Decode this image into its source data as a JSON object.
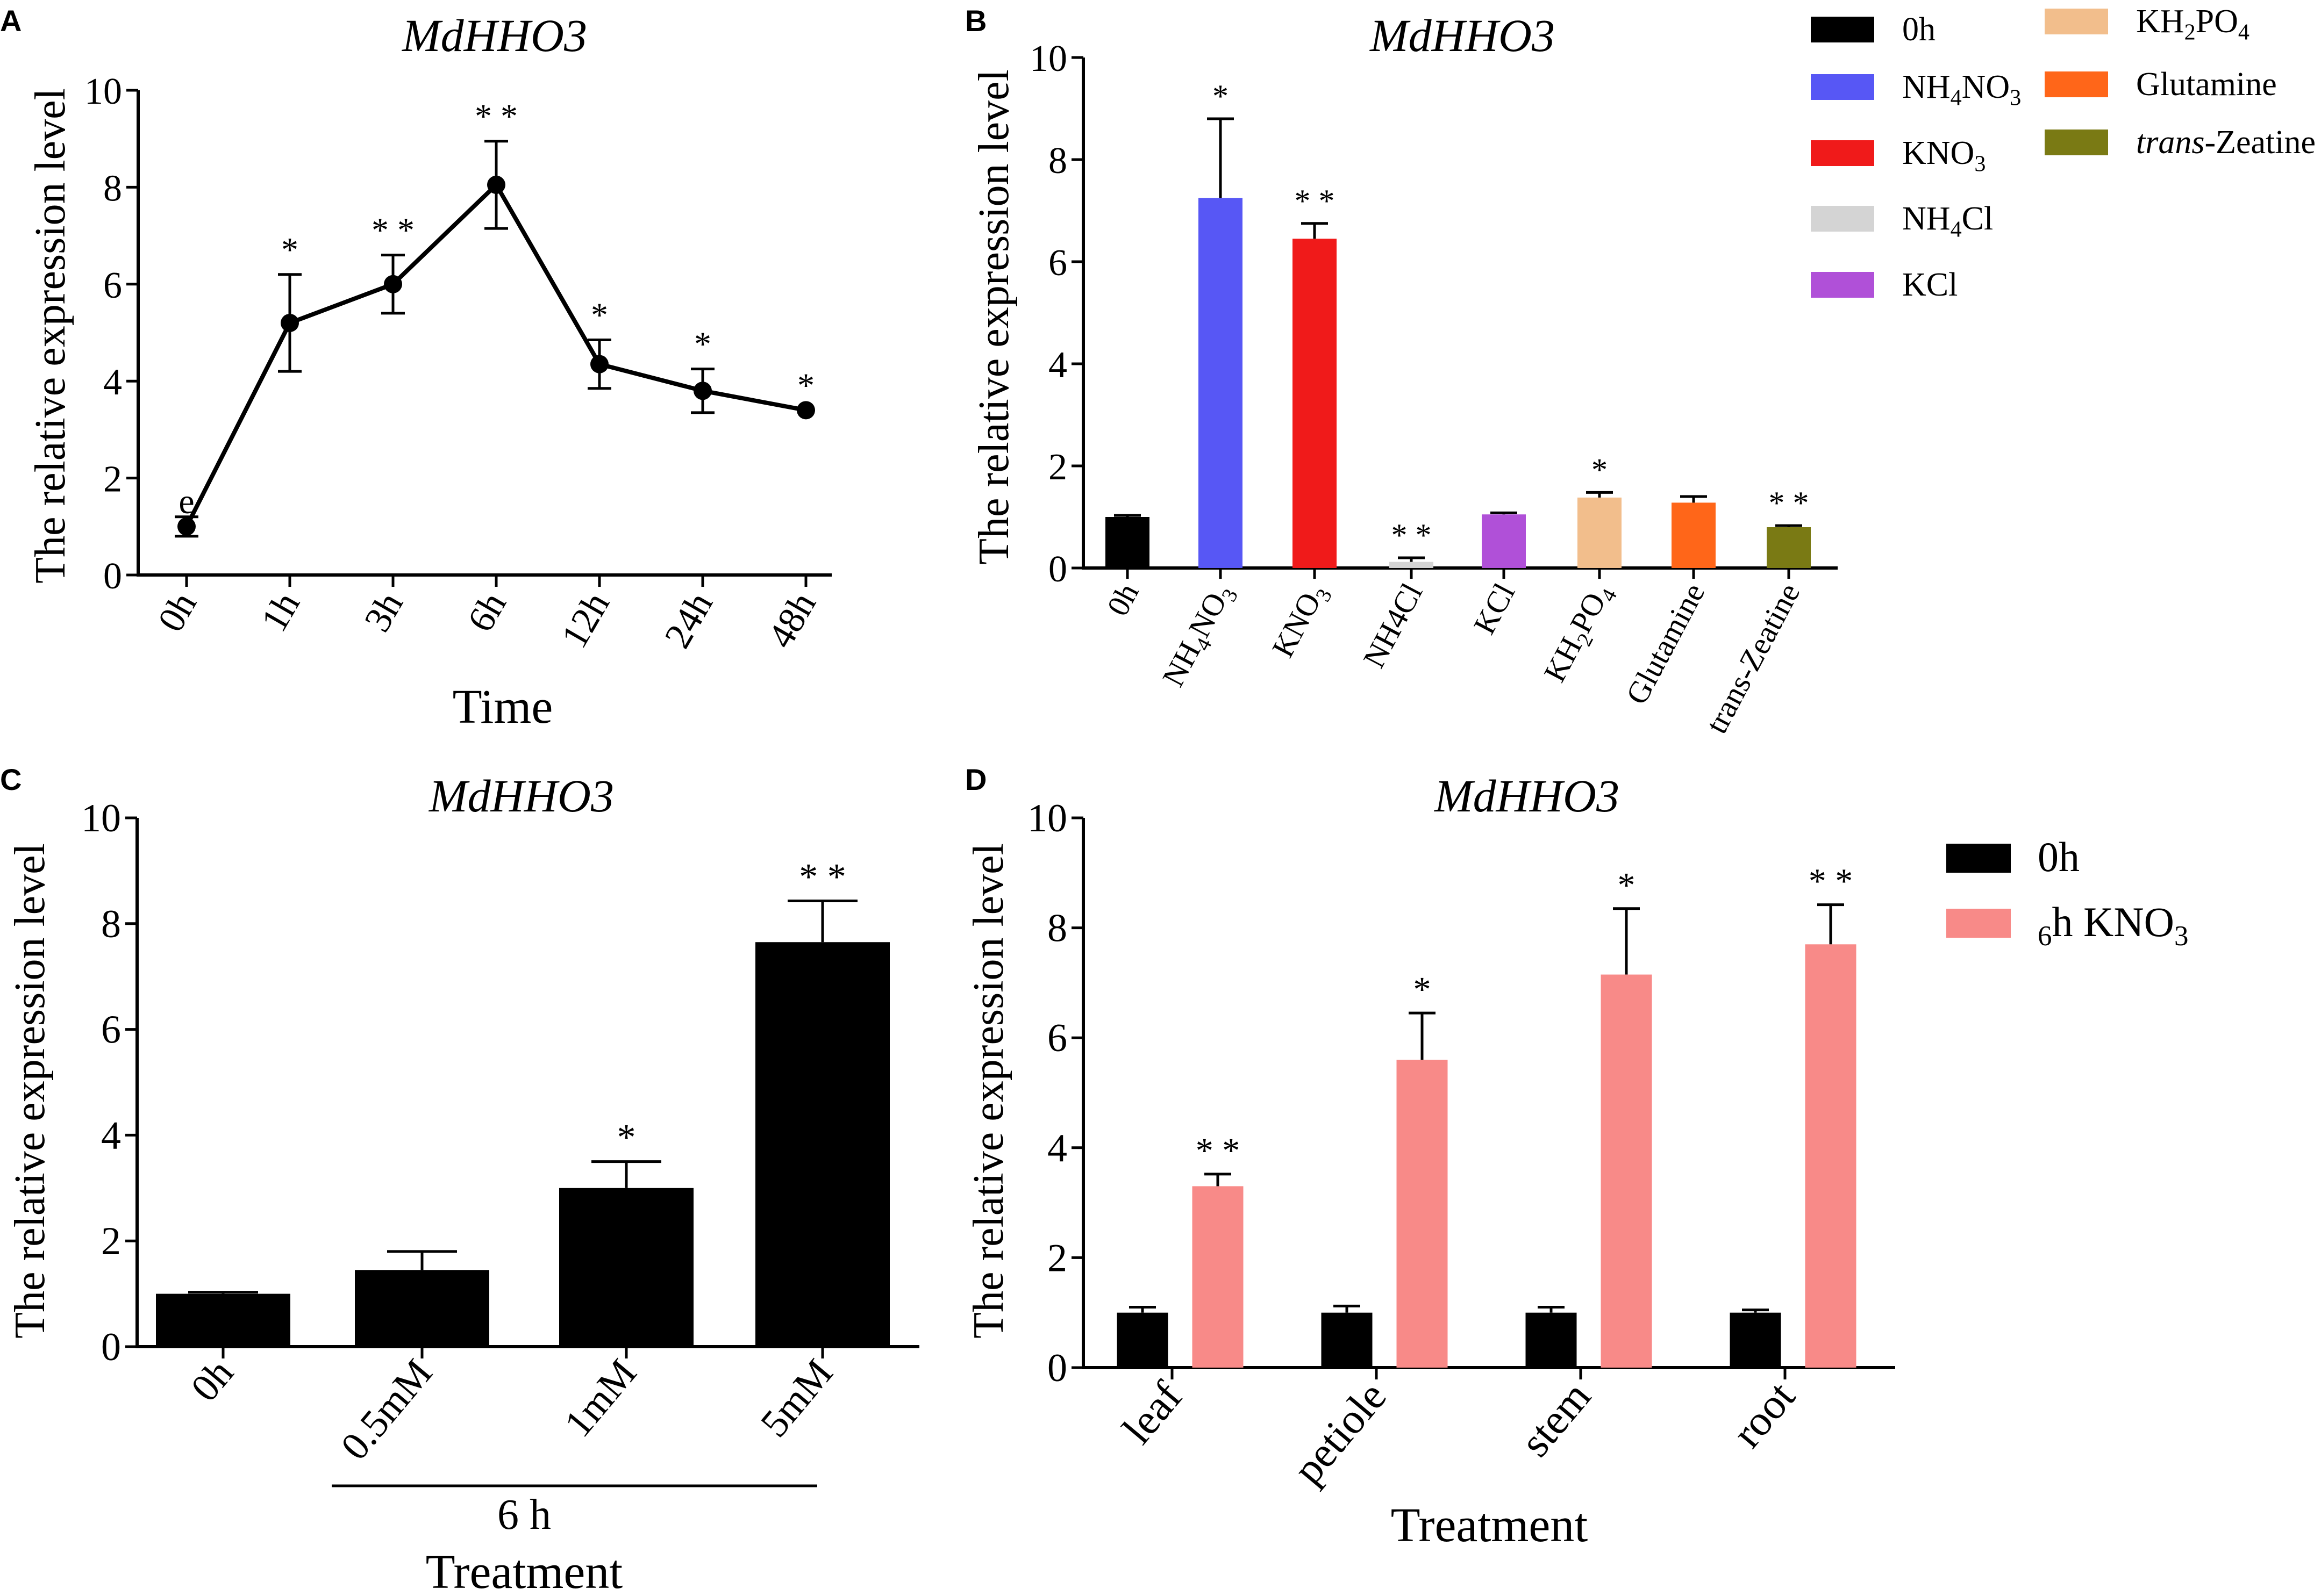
{
  "figure": {
    "panel_labels": [
      "A",
      "B",
      "C",
      "D"
    ]
  },
  "colors": {
    "black": "#000000",
    "NH4NO3": "#5757F5",
    "KNO3": "#F01A1A",
    "NH4Cl": "#D4D4D4",
    "KCl": "#B050D8",
    "KH2PO4": "#F2BE8C",
    "Glutamine": "#FF6619",
    "trans-Zeatine": "#7A7A14",
    "6h KNO3": "#F88A88"
  },
  "chart_data": [
    {
      "panel": "A",
      "type": "line",
      "title": "MdHHO3",
      "xlabel": "Time",
      "ylabel": "The relative expression level",
      "ylim": [
        0,
        10
      ],
      "yticks": [
        "0",
        "2",
        "4",
        "6",
        "8",
        "10"
      ],
      "categories": [
        "0h",
        "1h",
        "3h",
        "6h",
        "12h",
        "24h",
        "48h"
      ],
      "values": [
        1.0,
        5.2,
        6.0,
        8.05,
        4.35,
        3.8,
        3.4
      ],
      "errors": [
        0.2,
        1.0,
        0.6,
        0.9,
        0.5,
        0.45,
        0.0
      ],
      "annotations": [
        "e",
        "*",
        "* *",
        "* *",
        "*",
        "*",
        "*"
      ]
    },
    {
      "panel": "B",
      "type": "bar",
      "title": "MdHHO3",
      "xlabel": "",
      "ylabel": "The relative expression level",
      "ylim": [
        0,
        10
      ],
      "yticks": [
        "0",
        "2",
        "4",
        "6",
        "8",
        "10"
      ],
      "categories": [
        "0h",
        "NH4NO3",
        "KNO3",
        "NH4Cl",
        "KCl",
        "KH2PO4",
        "Glutamine",
        "trans-Zeatine"
      ],
      "tick_labels": [
        "0h",
        "NH4NO3",
        "KNO3",
        "NH4Cl",
        "KCl",
        "KH2PO4",
        "Glutamine",
        "trans-Zeatine"
      ],
      "values": [
        1.0,
        7.25,
        6.45,
        0.12,
        1.05,
        1.38,
        1.28,
        0.8
      ],
      "errors": [
        0.03,
        1.55,
        0.3,
        0.08,
        0.03,
        0.1,
        0.12,
        0.03
      ],
      "annotations": [
        "",
        "*",
        "* *",
        "* *",
        "",
        "*",
        "",
        "* *"
      ],
      "legend": [
        "0h",
        "NH4NO3",
        "KNO3",
        "NH4Cl",
        "KCl",
        "KH2PO4",
        "Glutamine",
        "trans-Zeatine"
      ]
    },
    {
      "panel": "C",
      "type": "bar",
      "title": "MdHHO3",
      "xlabel": "Treatment",
      "ylabel": "The relative expression level",
      "ylim": [
        0,
        10
      ],
      "yticks": [
        "0",
        "2",
        "4",
        "6",
        "8",
        "10"
      ],
      "categories": [
        "0h",
        "0.5mM",
        "1mM",
        "5mM"
      ],
      "values": [
        1.0,
        1.45,
        3.0,
        7.65
      ],
      "errors": [
        0.03,
        0.35,
        0.5,
        0.78
      ],
      "annotations": [
        "",
        "",
        "*",
        "* *"
      ],
      "group_label": "6 h"
    },
    {
      "panel": "D",
      "type": "bar",
      "title": "MdHHO3",
      "xlabel": "Treatment",
      "ylabel": "The relative expression level",
      "ylim": [
        0,
        10
      ],
      "yticks": [
        "0",
        "2",
        "4",
        "6",
        "8",
        "10"
      ],
      "categories": [
        "leaf",
        "petiole",
        "stem",
        "root"
      ],
      "series": [
        {
          "name": "0h",
          "values": [
            1.0,
            1.0,
            1.0,
            1.0
          ],
          "errors": [
            0.1,
            0.12,
            0.1,
            0.05
          ],
          "annotations": [
            "",
            "",
            "",
            ""
          ]
        },
        {
          "name": "6h KNO3",
          "values": [
            3.3,
            5.6,
            7.15,
            7.7
          ],
          "errors": [
            0.22,
            0.85,
            1.2,
            0.72
          ],
          "annotations": [
            "* *",
            "*",
            "*",
            "* *"
          ]
        }
      ]
    }
  ]
}
